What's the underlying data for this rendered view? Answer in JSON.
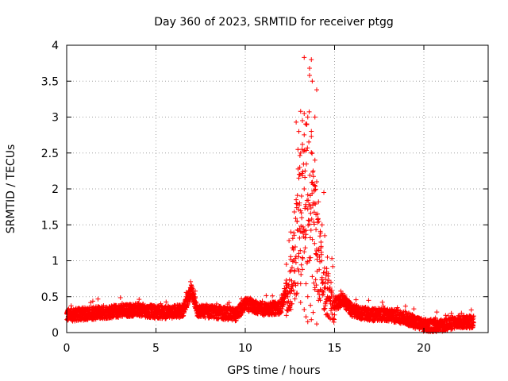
{
  "chart_data": {
    "type": "scatter",
    "title": "Day 360 of 2023, SRMTID for receiver ptgg",
    "xlabel": "GPS time / hours",
    "ylabel": "SRMTID / TECUs",
    "xlim": [
      0,
      23.6
    ],
    "ylim": [
      0,
      4
    ],
    "xticks": [
      0,
      5,
      10,
      15,
      20
    ],
    "yticks": [
      0,
      0.5,
      1,
      1.5,
      2,
      2.5,
      3,
      3.5,
      4
    ],
    "ytick_labels": [
      "0",
      "0.5",
      "1",
      "1.5",
      "2",
      "2.5",
      "3",
      "3.5",
      "4"
    ],
    "grid": true,
    "marker": "plus",
    "color": "#ff0000",
    "series": [
      {
        "name": "ptgg",
        "approx_trend": [
          {
            "x": 0.0,
            "y": 0.24
          },
          {
            "x": 1.0,
            "y": 0.26
          },
          {
            "x": 2.0,
            "y": 0.28
          },
          {
            "x": 3.0,
            "y": 0.3
          },
          {
            "x": 4.0,
            "y": 0.32
          },
          {
            "x": 4.5,
            "y": 0.3
          },
          {
            "x": 5.5,
            "y": 0.28
          },
          {
            "x": 6.5,
            "y": 0.3
          },
          {
            "x": 7.0,
            "y": 0.6
          },
          {
            "x": 7.3,
            "y": 0.3
          },
          {
            "x": 8.5,
            "y": 0.28
          },
          {
            "x": 9.5,
            "y": 0.25
          },
          {
            "x": 10.0,
            "y": 0.4
          },
          {
            "x": 11.0,
            "y": 0.32
          },
          {
            "x": 12.0,
            "y": 0.35
          },
          {
            "x": 12.5,
            "y": 0.8
          },
          {
            "x": 13.0,
            "y": 2.0
          },
          {
            "x": 13.5,
            "y": 3.0
          },
          {
            "x": 14.0,
            "y": 1.5
          },
          {
            "x": 14.5,
            "y": 0.8
          },
          {
            "x": 15.0,
            "y": 0.4
          },
          {
            "x": 15.5,
            "y": 0.45
          },
          {
            "x": 16.0,
            "y": 0.3
          },
          {
            "x": 17.0,
            "y": 0.25
          },
          {
            "x": 18.0,
            "y": 0.25
          },
          {
            "x": 19.0,
            "y": 0.2
          },
          {
            "x": 20.0,
            "y": 0.1
          },
          {
            "x": 21.0,
            "y": 0.1
          },
          {
            "x": 22.0,
            "y": 0.15
          },
          {
            "x": 22.8,
            "y": 0.15
          }
        ],
        "points": [
          {
            "x": 13.3,
            "y": 3.83
          },
          {
            "x": 13.7,
            "y": 3.8
          },
          {
            "x": 13.6,
            "y": 3.68
          },
          {
            "x": 13.6,
            "y": 3.58
          },
          {
            "x": 13.75,
            "y": 3.5
          },
          {
            "x": 14.0,
            "y": 3.38
          },
          {
            "x": 13.1,
            "y": 3.08
          },
          {
            "x": 13.3,
            "y": 3.05
          },
          {
            "x": 13.5,
            "y": 3.0
          },
          {
            "x": 13.9,
            "y": 3.0
          },
          {
            "x": 13.2,
            "y": 2.95
          },
          {
            "x": 12.85,
            "y": 2.93
          },
          {
            "x": 13.0,
            "y": 2.8
          },
          {
            "x": 13.7,
            "y": 2.73
          },
          {
            "x": 13.2,
            "y": 2.62
          },
          {
            "x": 12.95,
            "y": 2.55
          },
          {
            "x": 13.1,
            "y": 2.5
          },
          {
            "x": 13.9,
            "y": 2.4
          },
          {
            "x": 13.05,
            "y": 2.3
          },
          {
            "x": 13.35,
            "y": 2.25
          },
          {
            "x": 13.8,
            "y": 2.25
          },
          {
            "x": 13.0,
            "y": 2.15
          },
          {
            "x": 14.0,
            "y": 2.1
          },
          {
            "x": 13.3,
            "y": 2.0
          },
          {
            "x": 13.9,
            "y": 1.98
          },
          {
            "x": 14.4,
            "y": 1.95
          },
          {
            "x": 13.15,
            "y": 1.9
          },
          {
            "x": 12.85,
            "y": 1.85
          },
          {
            "x": 14.1,
            "y": 1.82
          },
          {
            "x": 13.4,
            "y": 1.75
          },
          {
            "x": 12.75,
            "y": 1.68
          },
          {
            "x": 14.05,
            "y": 1.65
          },
          {
            "x": 12.9,
            "y": 1.55
          },
          {
            "x": 14.3,
            "y": 1.5
          },
          {
            "x": 13.05,
            "y": 1.45
          },
          {
            "x": 12.55,
            "y": 1.4
          },
          {
            "x": 14.45,
            "y": 1.35
          },
          {
            "x": 13.35,
            "y": 1.32
          },
          {
            "x": 12.45,
            "y": 1.28
          },
          {
            "x": 14.25,
            "y": 1.2
          },
          {
            "x": 12.7,
            "y": 1.15
          },
          {
            "x": 13.95,
            "y": 1.1
          },
          {
            "x": 14.6,
            "y": 1.05
          },
          {
            "x": 12.55,
            "y": 1.02
          },
          {
            "x": 13.6,
            "y": 1.0
          },
          {
            "x": 14.85,
            "y": 1.03
          },
          {
            "x": 12.3,
            "y": 0.95
          },
          {
            "x": 14.9,
            "y": 0.92
          },
          {
            "x": 13.2,
            "y": 0.88
          },
          {
            "x": 12.5,
            "y": 0.85
          },
          {
            "x": 14.65,
            "y": 0.82
          },
          {
            "x": 13.75,
            "y": 0.78
          },
          {
            "x": 12.6,
            "y": 0.72
          },
          {
            "x": 14.8,
            "y": 0.7
          },
          {
            "x": 13.4,
            "y": 0.68
          },
          {
            "x": 12.4,
            "y": 0.65
          },
          {
            "x": 14.5,
            "y": 0.62
          },
          {
            "x": 13.9,
            "y": 0.6
          },
          {
            "x": 12.9,
            "y": 0.55
          },
          {
            "x": 13.5,
            "y": 0.5
          },
          {
            "x": 14.2,
            "y": 0.45
          },
          {
            "x": 13.1,
            "y": 0.42
          },
          {
            "x": 13.65,
            "y": 0.38
          },
          {
            "x": 13.3,
            "y": 0.32
          },
          {
            "x": 13.8,
            "y": 0.28
          },
          {
            "x": 13.4,
            "y": 0.22
          },
          {
            "x": 13.7,
            "y": 0.18
          },
          {
            "x": 13.5,
            "y": 0.15
          },
          {
            "x": 14.0,
            "y": 0.12
          }
        ]
      }
    ]
  }
}
